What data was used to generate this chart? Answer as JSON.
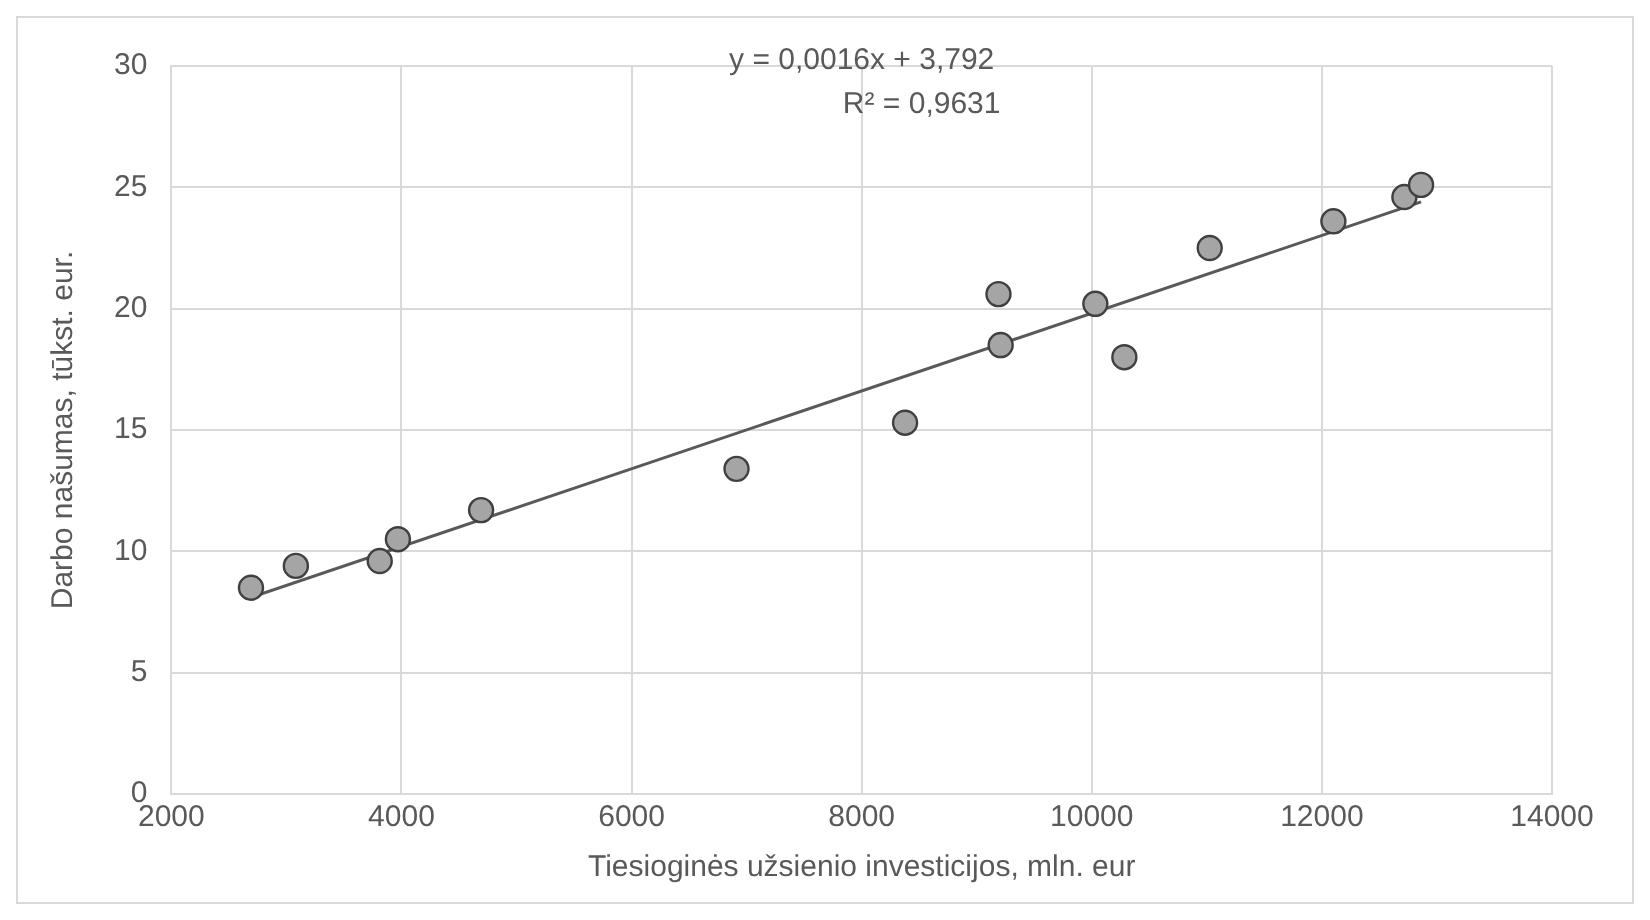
{
  "chart_data": {
    "type": "scatter",
    "xlabel": "Tiesioginės užsienio investicijos, mln. eur",
    "ylabel": "Darbo našumas, tūkst. eur.",
    "x": [
      2692,
      3082,
      3811,
      3969,
      4692,
      6912,
      8377,
      9189,
      9208,
      10031,
      10283,
      11025,
      12100,
      12717,
      12862
    ],
    "series": [
      {
        "color": "#a5a5a5",
        "values": [
          8.5,
          9.4,
          9.6,
          10.5,
          11.7,
          13.4,
          15.3,
          20.6,
          18.5,
          20.2,
          18.0,
          22.5,
          23.6,
          24.6,
          25.1
        ]
      },
      {
        "type": "line",
        "color": "#595959",
        "x": [
          2692,
          12862
        ],
        "values": [
          8.1,
          24.4
        ],
        "marker": "none"
      }
    ],
    "annotations": [
      "y = 0,0016x + 3,792",
      "R² = 0,9631"
    ],
    "xlim": [
      2000,
      14000
    ],
    "xticks": [
      2000,
      4000,
      6000,
      8000,
      10000,
      12000,
      14000
    ],
    "ylim": [
      0,
      30
    ],
    "yticks": [
      0,
      5,
      10,
      15,
      20,
      25,
      30
    ],
    "grid": true,
    "legend": false,
    "marker": "circle"
  }
}
